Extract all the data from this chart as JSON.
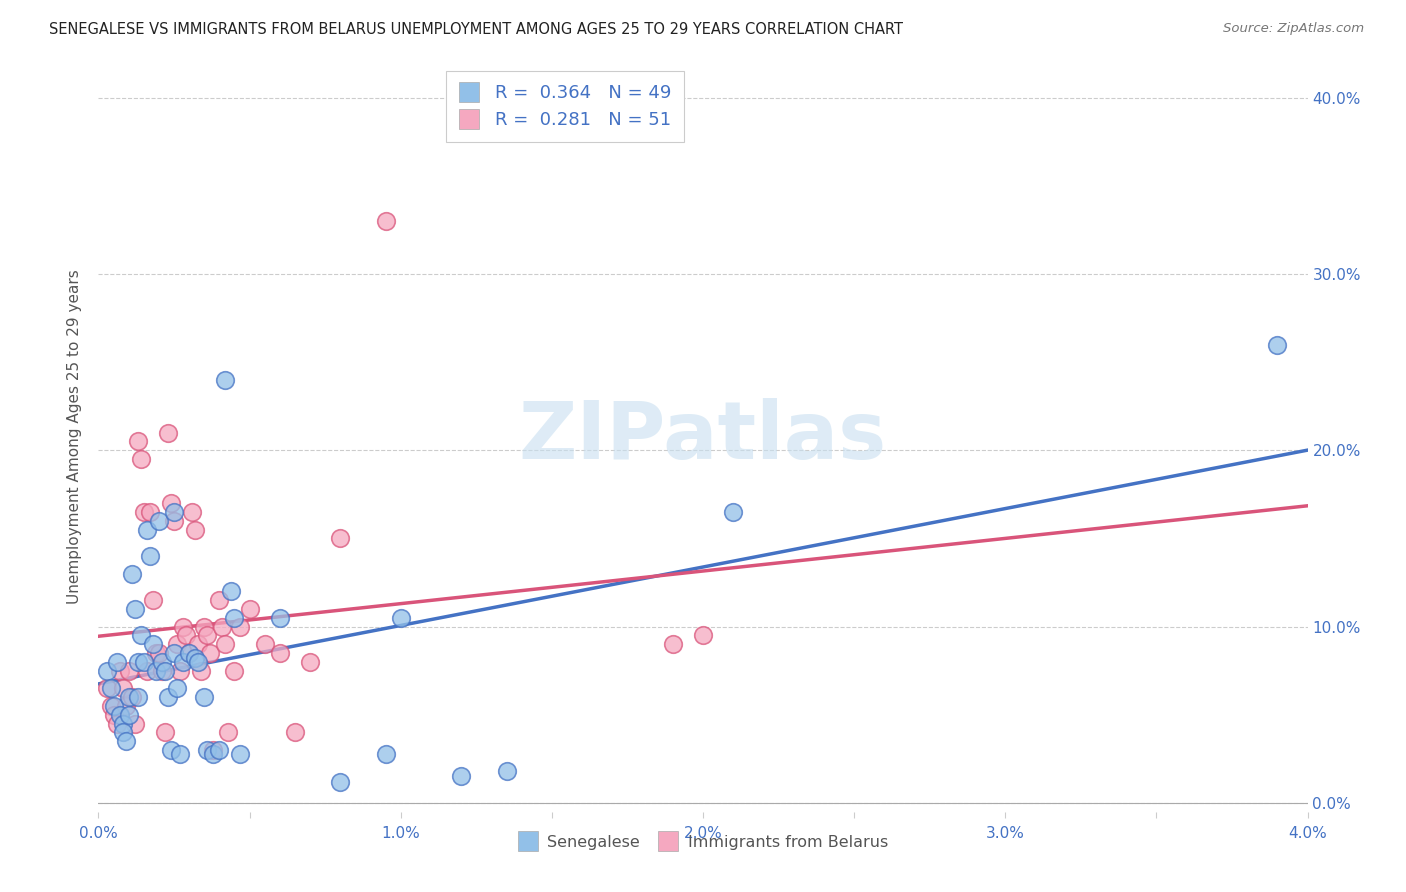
{
  "title": "SENEGALESE VS IMMIGRANTS FROM BELARUS UNEMPLOYMENT AMONG AGES 25 TO 29 YEARS CORRELATION CHART",
  "source": "Source: ZipAtlas.com",
  "ylabel": "Unemployment Among Ages 25 to 29 years",
  "xlim": [
    0.0,
    0.04
  ],
  "ylim": [
    -0.005,
    0.42
  ],
  "blue_color": "#92c0e8",
  "pink_color": "#f5a8c0",
  "blue_line_color": "#4472c4",
  "pink_line_color": "#d9547a",
  "legend_R_blue": "0.364",
  "legend_N_blue": "49",
  "legend_R_pink": "0.281",
  "legend_N_pink": "51",
  "watermark": "ZIPatlas",
  "grid_color": "#cccccc",
  "y_ticks": [
    0.0,
    0.1,
    0.2,
    0.3,
    0.4
  ],
  "y_tick_labels_right": [
    "0.0%",
    "10.0%",
    "20.0%",
    "30.0%",
    "40.0%"
  ],
  "x_ticks": [
    0.0,
    0.005,
    0.01,
    0.015,
    0.02,
    0.025,
    0.03,
    0.035,
    0.04
  ],
  "x_tick_labels": [
    "0.0%",
    "",
    "1.0%",
    "",
    "2.0%",
    "",
    "3.0%",
    "",
    "4.0%"
  ],
  "senegalese_x": [
    0.0003,
    0.0004,
    0.0005,
    0.0006,
    0.0007,
    0.0008,
    0.0008,
    0.0009,
    0.001,
    0.001,
    0.0011,
    0.0012,
    0.0013,
    0.0013,
    0.0014,
    0.0015,
    0.0016,
    0.0017,
    0.0018,
    0.0019,
    0.002,
    0.0021,
    0.0022,
    0.0023,
    0.0024,
    0.0025,
    0.0025,
    0.0026,
    0.0027,
    0.0028,
    0.003,
    0.0032,
    0.0033,
    0.0035,
    0.0036,
    0.0038,
    0.004,
    0.0042,
    0.0044,
    0.0045,
    0.0047,
    0.006,
    0.008,
    0.0095,
    0.01,
    0.012,
    0.0135,
    0.021,
    0.039
  ],
  "senegalese_y": [
    0.075,
    0.065,
    0.055,
    0.08,
    0.05,
    0.045,
    0.04,
    0.035,
    0.06,
    0.05,
    0.13,
    0.11,
    0.08,
    0.06,
    0.095,
    0.08,
    0.155,
    0.14,
    0.09,
    0.075,
    0.16,
    0.08,
    0.075,
    0.06,
    0.03,
    0.165,
    0.085,
    0.065,
    0.028,
    0.08,
    0.085,
    0.082,
    0.08,
    0.06,
    0.03,
    0.028,
    0.03,
    0.24,
    0.12,
    0.105,
    0.028,
    0.105,
    0.012,
    0.028,
    0.105,
    0.015,
    0.018,
    0.165,
    0.26
  ],
  "belarus_x": [
    0.0003,
    0.0004,
    0.0005,
    0.0006,
    0.0007,
    0.0008,
    0.0009,
    0.001,
    0.0011,
    0.0012,
    0.0013,
    0.0014,
    0.0015,
    0.0016,
    0.0017,
    0.0018,
    0.0019,
    0.002,
    0.0021,
    0.0022,
    0.0023,
    0.0024,
    0.0025,
    0.0026,
    0.0027,
    0.0028,
    0.0029,
    0.003,
    0.0031,
    0.0032,
    0.0033,
    0.0034,
    0.0035,
    0.0036,
    0.0037,
    0.0038,
    0.004,
    0.0041,
    0.0042,
    0.0043,
    0.0045,
    0.0047,
    0.005,
    0.0055,
    0.006,
    0.0065,
    0.007,
    0.008,
    0.0095,
    0.019,
    0.02
  ],
  "belarus_y": [
    0.065,
    0.055,
    0.05,
    0.045,
    0.075,
    0.065,
    0.055,
    0.075,
    0.06,
    0.045,
    0.205,
    0.195,
    0.165,
    0.075,
    0.165,
    0.115,
    0.085,
    0.085,
    0.075,
    0.04,
    0.21,
    0.17,
    0.16,
    0.09,
    0.075,
    0.1,
    0.095,
    0.085,
    0.165,
    0.155,
    0.09,
    0.075,
    0.1,
    0.095,
    0.085,
    0.03,
    0.115,
    0.1,
    0.09,
    0.04,
    0.075,
    0.1,
    0.11,
    0.09,
    0.085,
    0.04,
    0.08,
    0.15,
    0.33,
    0.09,
    0.095
  ]
}
